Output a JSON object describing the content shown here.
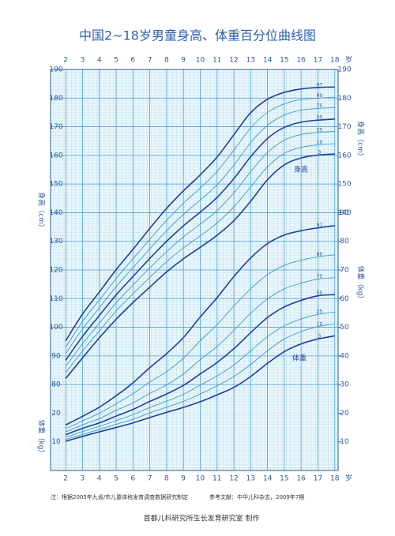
{
  "chart_data": {
    "type": "line",
    "title": "中国2~18岁男童身高、体重百分位曲线图",
    "x": [
      2,
      3,
      4,
      5,
      6,
      7,
      8,
      9,
      10,
      11,
      12,
      13,
      14,
      15,
      16,
      17,
      18
    ],
    "xlim": [
      1.1,
      18.2
    ],
    "xticks": [
      2,
      3,
      4,
      5,
      6,
      7,
      8,
      9,
      10,
      11,
      12,
      13,
      14,
      15,
      16,
      17,
      18
    ],
    "x_unit": "岁",
    "ylim": [
      50,
      190
    ],
    "yticks": [
      80,
      90,
      100,
      110,
      120,
      130,
      140,
      150,
      160,
      170,
      180,
      190
    ],
    "y_label": "身高（cm）",
    "y2lim": [
      0,
      140
    ],
    "y2ticks": [
      10,
      20,
      30,
      40,
      50,
      60,
      70,
      80,
      90
    ],
    "y2_label": "体重（kg）",
    "grid": true,
    "annotations": [
      "身高",
      "体重"
    ],
    "notes": [
      "注：根据2005年九省/市儿童体格发育调查数据研究制定",
      "参考文献：中华儿科杂志，2009年7期",
      "首都儿科研究所生长发育研究室 制作"
    ],
    "series": [
      {
        "name": "97",
        "color": "#1f3f9c",
        "values": [
          95.3,
          104.6,
          112.3,
          120.1,
          127.2,
          134.5,
          141.5,
          147.6,
          153.2,
          159.4,
          167.2,
          174.9,
          179.6,
          182.0,
          183.2,
          183.7,
          183.9
        ]
      },
      {
        "name": "90",
        "color": "#3a9cc6",
        "values": [
          93.0,
          102.0,
          109.5,
          117.0,
          123.9,
          130.7,
          137.3,
          143.3,
          148.6,
          154.4,
          161.8,
          169.6,
          175.0,
          178.0,
          179.5,
          180.0,
          180.3
        ]
      },
      {
        "name": "75",
        "color": "#3a9cc6",
        "values": [
          90.8,
          99.4,
          106.8,
          114.2,
          120.8,
          127.4,
          133.7,
          139.4,
          144.4,
          149.7,
          156.6,
          164.4,
          170.5,
          174.1,
          175.8,
          176.4,
          176.7
        ]
      },
      {
        "name": "50",
        "color": "#1f3f9c",
        "values": [
          88.5,
          96.8,
          104.1,
          111.3,
          117.7,
          124.0,
          130.0,
          135.4,
          140.2,
          145.3,
          151.9,
          159.5,
          165.9,
          169.8,
          171.6,
          172.3,
          172.7
        ]
      },
      {
        "name": "25",
        "color": "#3a9cc6",
        "values": [
          86.3,
          94.2,
          101.4,
          108.5,
          114.7,
          120.7,
          126.4,
          131.5,
          136.0,
          140.7,
          146.9,
          154.3,
          161.0,
          165.3,
          167.3,
          168.0,
          168.4
        ]
      },
      {
        "name": "10",
        "color": "#3a9cc6",
        "values": [
          84.2,
          91.7,
          98.7,
          105.7,
          111.7,
          117.4,
          122.9,
          127.7,
          131.9,
          136.4,
          142.0,
          149.0,
          156.0,
          160.7,
          162.8,
          163.7,
          164.1
        ]
      },
      {
        "name": "3",
        "color": "#1f3f9c",
        "values": [
          82.1,
          89.3,
          96.3,
          102.8,
          108.6,
          114.0,
          119.3,
          123.9,
          127.9,
          132.1,
          137.2,
          144.0,
          151.5,
          156.7,
          159.1,
          160.1,
          160.5
        ]
      },
      {
        "name": "97",
        "color": "#1f3f9c",
        "axis": "y2",
        "values": [
          15.9,
          18.9,
          22.1,
          26.1,
          30.6,
          35.9,
          40.8,
          46.4,
          53.6,
          60.3,
          67.7,
          74.2,
          79.2,
          82.2,
          83.7,
          84.7,
          85.5
        ]
      },
      {
        "name": "90",
        "color": "#3a9cc6",
        "axis": "y2",
        "values": [
          14.6,
          17.3,
          20.0,
          23.3,
          26.8,
          30.9,
          34.5,
          39.2,
          45.3,
          50.9,
          57.4,
          63.4,
          68.4,
          71.6,
          73.4,
          74.6,
          75.3
        ]
      },
      {
        "name": "75",
        "color": "#3a9cc6",
        "axis": "y2",
        "values": [
          13.5,
          15.9,
          18.1,
          21.0,
          23.6,
          26.9,
          29.9,
          33.7,
          38.7,
          43.3,
          48.9,
          54.9,
          59.9,
          63.4,
          65.4,
          66.8,
          67.3
        ]
      },
      {
        "name": "50",
        "color": "#1f3f9c",
        "axis": "y2",
        "values": [
          12.5,
          14.7,
          16.6,
          19.0,
          21.3,
          24.1,
          26.7,
          29.7,
          33.7,
          37.7,
          42.5,
          48.1,
          53.4,
          57.1,
          59.4,
          61.0,
          61.4
        ]
      },
      {
        "name": "25",
        "color": "#3a9cc6",
        "axis": "y2",
        "values": [
          11.6,
          13.6,
          15.4,
          17.4,
          19.5,
          22.0,
          24.2,
          26.6,
          29.8,
          33.0,
          36.8,
          41.8,
          46.7,
          50.5,
          52.9,
          54.5,
          55.3
        ]
      },
      {
        "name": "10",
        "color": "#3a9cc6",
        "axis": "y2",
        "values": [
          10.8,
          12.6,
          14.3,
          16.1,
          17.9,
          20.1,
          22.1,
          24.1,
          26.7,
          29.6,
          32.8,
          37.0,
          41.8,
          45.9,
          48.5,
          50.2,
          51.2
        ]
      },
      {
        "name": "3",
        "color": "#1f3f9c",
        "axis": "y2",
        "values": [
          10.2,
          11.9,
          13.5,
          15.0,
          16.6,
          18.5,
          20.3,
          22.0,
          24.0,
          26.4,
          29.0,
          32.8,
          37.4,
          41.5,
          44.2,
          45.9,
          47.0
        ]
      }
    ]
  }
}
